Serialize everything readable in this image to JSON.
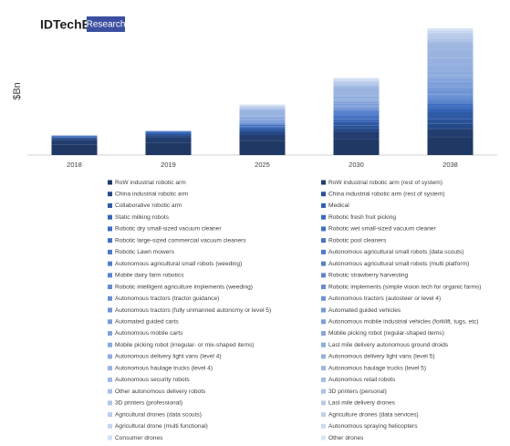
{
  "logo": {
    "name": "IDTechEx",
    "tag": "Research"
  },
  "chart_data": {
    "type": "stacked_bar",
    "y_label": "$Bn",
    "categories": [
      "2018",
      "2019",
      "2025",
      "2030",
      "2038"
    ],
    "ylim": [
      0,
      290
    ],
    "series": [
      {
        "name": "RoW industrial robotic arm",
        "color": "#1f3864",
        "values": [
          24,
          28,
          32,
          36,
          40
        ]
      },
      {
        "name": "RoW industrial robotic arm (rest of system)",
        "color": "#223d6e",
        "values": [
          10,
          12,
          14,
          16,
          18
        ]
      },
      {
        "name": "China industrial robotic arm",
        "color": "#264a88",
        "values": [
          3,
          4,
          6,
          8,
          12
        ]
      },
      {
        "name": "China industrial robotic arm (rest of system)",
        "color": "#2a5296",
        "values": [
          2,
          3,
          4,
          6,
          10
        ]
      },
      {
        "name": "Collaborative robotic arm",
        "color": "#2f5aa6",
        "values": [
          1,
          1,
          4,
          8,
          16
        ]
      },
      {
        "name": "Medical",
        "color": "#3361b2",
        "values": [
          1,
          1,
          3,
          5,
          8
        ]
      },
      {
        "name": "Static milking robots",
        "color": "#3766b9",
        "values": [
          1,
          1,
          1,
          2,
          2
        ]
      },
      {
        "name": "Robotic fresh fruit picking",
        "color": "#3a6abd",
        "values": [
          0,
          0,
          1,
          2,
          4
        ]
      },
      {
        "name": "Robotic dry small-sized vacuum cleaner",
        "color": "#3d6dc0",
        "values": [
          1,
          2,
          3,
          4,
          5
        ]
      },
      {
        "name": "Robotic wet small-sized vacuum cleaner",
        "color": "#4070c2",
        "values": [
          0,
          0,
          1,
          1,
          2
        ]
      },
      {
        "name": "Robotic large-sized commercial vacuum cleaners",
        "color": "#4372c4",
        "values": [
          0,
          0,
          1,
          2,
          3
        ]
      },
      {
        "name": "Robotic pool cleaners",
        "color": "#4675c6",
        "values": [
          0,
          0,
          1,
          1,
          1
        ]
      },
      {
        "name": "Robotic Lawn mowers",
        "color": "#4a78c8",
        "values": [
          0,
          1,
          1,
          2,
          3
        ]
      },
      {
        "name": "Autonomous agricultural small robots (data scouts)",
        "color": "#4e7bca",
        "values": [
          0,
          0,
          0,
          1,
          1
        ]
      },
      {
        "name": "Autonomous agricultural small robots (weeding)",
        "color": "#527ecc",
        "values": [
          0,
          0,
          1,
          1,
          2
        ]
      },
      {
        "name": "Autonomous agricultural small robots (multi platform)",
        "color": "#5681cd",
        "values": [
          0,
          0,
          1,
          2,
          3
        ]
      },
      {
        "name": "Mobile dairy farm robotics",
        "color": "#5a84cf",
        "values": [
          0,
          0,
          0,
          1,
          1
        ]
      },
      {
        "name": "Robotic strawberry harvesting",
        "color": "#5e87d0",
        "values": [
          0,
          0,
          0,
          1,
          2
        ]
      },
      {
        "name": "Robotic intelligent agriculture implements (weeding)",
        "color": "#628ad2",
        "values": [
          0,
          0,
          1,
          1,
          2
        ]
      },
      {
        "name": "Robotic implements (simple vision tech for organic farms)",
        "color": "#668dd3",
        "values": [
          0,
          0,
          0,
          1,
          1
        ]
      },
      {
        "name": "Autonomous tractors (tractor guidance)",
        "color": "#6a90d4",
        "values": [
          1,
          1,
          2,
          2,
          2
        ]
      },
      {
        "name": "Autonomous tractors (autosteer or level 4)",
        "color": "#6e93d5",
        "values": [
          0,
          0,
          1,
          3,
          5
        ]
      },
      {
        "name": "Autonomous tractors (fully unmanned autonomy or level 5)",
        "color": "#7296d6",
        "values": [
          0,
          0,
          0,
          1,
          4
        ]
      },
      {
        "name": "Automated guided vehicles",
        "color": "#7699d7",
        "values": [
          0,
          0,
          1,
          2,
          3
        ]
      },
      {
        "name": "Automated guided carts",
        "color": "#7a9cd8",
        "values": [
          0,
          0,
          1,
          1,
          2
        ]
      },
      {
        "name": "Autonomous mobile industrial vehicles (forklift, tugs, etc)",
        "color": "#7e9fd9",
        "values": [
          0,
          0,
          3,
          6,
          12
        ]
      },
      {
        "name": "Autonomous mobile carts",
        "color": "#82a2da",
        "values": [
          0,
          0,
          2,
          4,
          8
        ]
      },
      {
        "name": "Mobile picking robot (regular-shaped items)",
        "color": "#86a5db",
        "values": [
          0,
          0,
          1,
          2,
          4
        ]
      },
      {
        "name": "Mobile picking robot (irregular- or mix-shaped items)",
        "color": "#8aa8dc",
        "values": [
          0,
          0,
          0,
          1,
          3
        ]
      },
      {
        "name": "Last mile delivery autonomous ground droids",
        "color": "#8eabdd",
        "values": [
          0,
          0,
          1,
          3,
          8
        ]
      },
      {
        "name": "Autonomous delivery light vans (level 4)",
        "color": "#92aede",
        "values": [
          0,
          0,
          2,
          6,
          14
        ]
      },
      {
        "name": "Autonomous delivery light vans (level 5)",
        "color": "#96b1df",
        "values": [
          0,
          0,
          0,
          2,
          16
        ]
      },
      {
        "name": "Autonomous haulage trucks (level 4)",
        "color": "#9ab4e0",
        "values": [
          0,
          0,
          12,
          16,
          18
        ]
      },
      {
        "name": "Autonomous  haulage trucks (level 5)",
        "color": "#9eb7e1",
        "values": [
          0,
          0,
          0,
          4,
          16
        ]
      },
      {
        "name": "Autonomous security robots",
        "color": "#a2bae2",
        "values": [
          0,
          0,
          1,
          2,
          3
        ]
      },
      {
        "name": "Autonomous retail robots",
        "color": "#a6bde3",
        "values": [
          0,
          0,
          1,
          1,
          2
        ]
      },
      {
        "name": "Other autonomous delivery robots",
        "color": "#aac0e5",
        "values": [
          0,
          0,
          1,
          2,
          4
        ]
      },
      {
        "name": "3D printers (personal)",
        "color": "#aec3e6",
        "values": [
          0,
          0,
          1,
          1,
          2
        ]
      },
      {
        "name": "3D printers (professional)",
        "color": "#b2c6e8",
        "values": [
          0,
          0,
          2,
          3,
          5
        ]
      },
      {
        "name": "Last mile delivery drones",
        "color": "#b6c9e9",
        "values": [
          0,
          0,
          1,
          2,
          4
        ]
      },
      {
        "name": "Agricultural drones (data scouts)",
        "color": "#bbcdeb",
        "values": [
          0,
          0,
          1,
          1,
          2
        ]
      },
      {
        "name": "Agriculture drones (data services)",
        "color": "#c0d1ed",
        "values": [
          0,
          0,
          1,
          1,
          2
        ]
      },
      {
        "name": "Agricultural drone (multi functional)",
        "color": "#c6d5ef",
        "values": [
          0,
          0,
          1,
          2,
          3
        ]
      },
      {
        "name": "Autonomous spraying helicopters",
        "color": "#ccdaf1",
        "values": [
          0,
          0,
          1,
          1,
          1
        ]
      },
      {
        "name": "Consumer drones",
        "color": "#d3dff3",
        "values": [
          0,
          0,
          1,
          2,
          3
        ]
      },
      {
        "name": "Other drones",
        "color": "#dae4f5",
        "values": [
          0,
          0,
          0,
          1,
          2
        ]
      }
    ]
  }
}
